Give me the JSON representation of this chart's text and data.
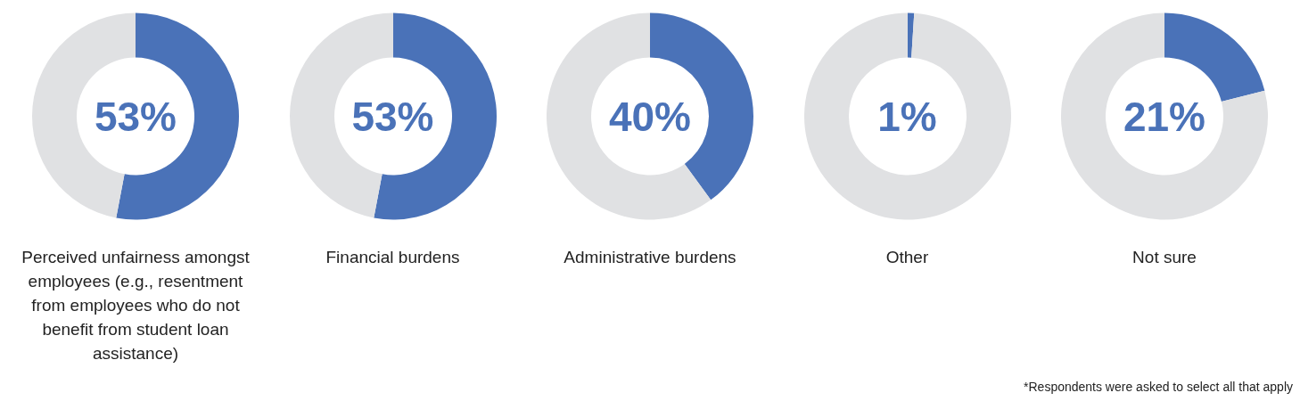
{
  "chart_data": [
    {
      "type": "donut",
      "title": "Perceived unfairness amongst employees (e.g., resentment from employees who do not benefit from student loan assistance)",
      "subtitle": "53%",
      "values": [
        53,
        47
      ],
      "colors": [
        "#4a72b8",
        "#e0e1e3"
      ]
    },
    {
      "type": "donut",
      "title": "Financial burdens",
      "subtitle": "53%",
      "values": [
        53,
        47
      ],
      "colors": [
        "#4a72b8",
        "#e0e1e3"
      ]
    },
    {
      "type": "donut",
      "title": "Administrative burdens",
      "subtitle": "40%",
      "values": [
        40,
        60
      ],
      "colors": [
        "#4a72b8",
        "#e0e1e3"
      ]
    },
    {
      "type": "donut",
      "title": "Other",
      "subtitle": "1%",
      "values": [
        1,
        99
      ],
      "colors": [
        "#4a72b8",
        "#e0e1e3"
      ]
    },
    {
      "type": "donut",
      "title": "Not sure",
      "subtitle": "21%",
      "values": [
        21,
        79
      ],
      "colors": [
        "#4a72b8",
        "#e0e1e3"
      ],
      "annotations": [
        "*Respondents were asked to select all that apply"
      ]
    }
  ]
}
